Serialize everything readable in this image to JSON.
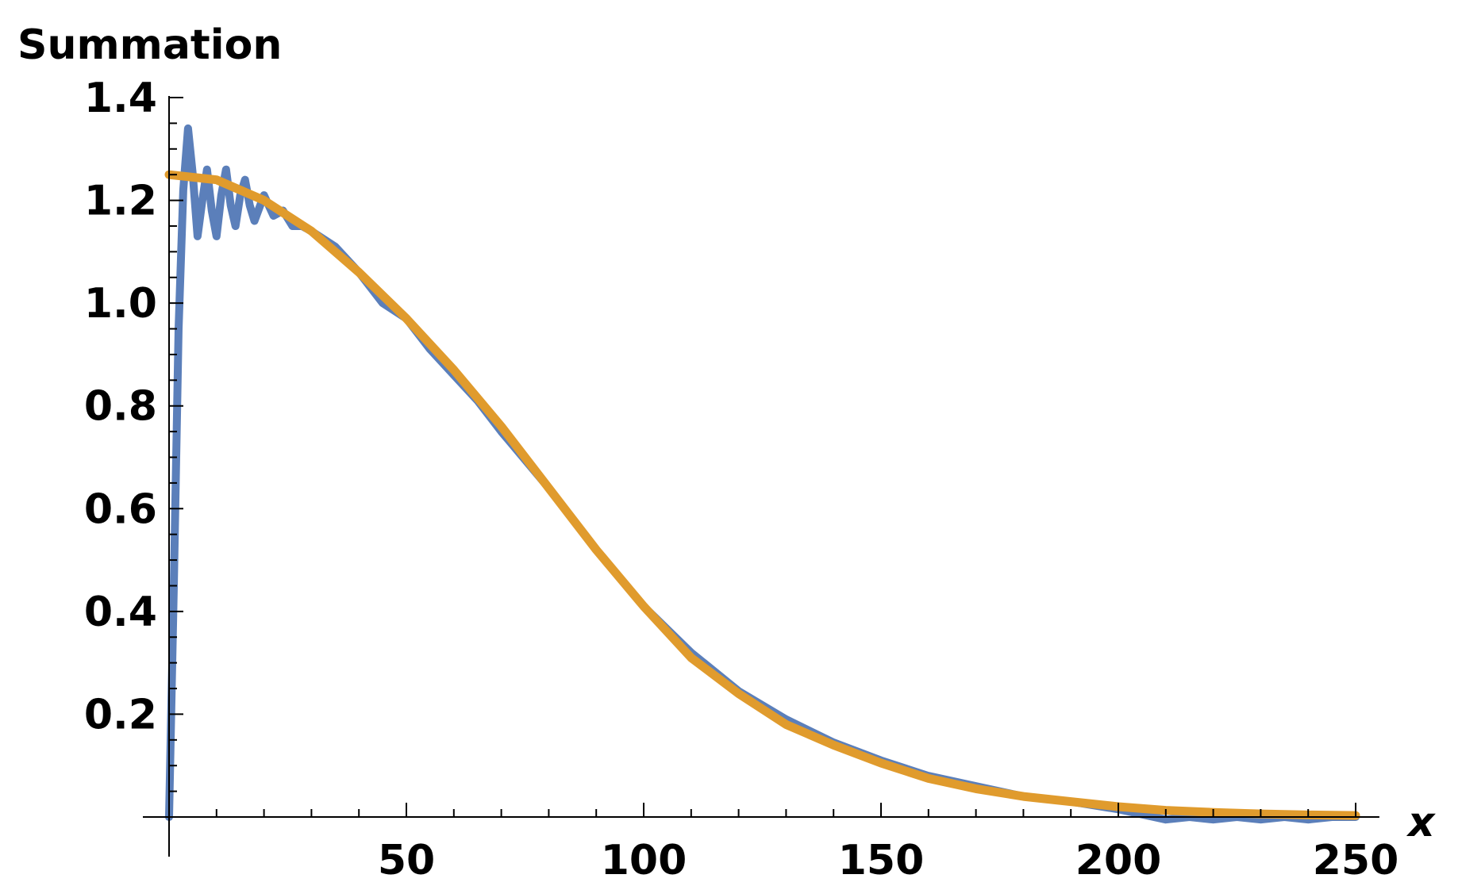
{
  "chart_data": {
    "type": "line",
    "ylabel": "Summation",
    "xlabel": "x",
    "xlim": [
      0,
      255
    ],
    "ylim": [
      0,
      1.4
    ],
    "grid": false,
    "x_ticks": [
      50,
      100,
      150,
      200,
      250
    ],
    "x_tick_labels": [
      "50",
      "100",
      "150",
      "200",
      "250"
    ],
    "y_ticks": [
      0.2,
      0.4,
      0.6,
      0.8,
      1.0,
      1.2,
      1.4
    ],
    "y_tick_labels": [
      "0.2",
      "0.4",
      "0.6",
      "0.8",
      "1.0",
      "1.2",
      "1.4"
    ],
    "series": [
      {
        "color": "#5b7fba",
        "x": [
          0,
          1,
          2,
          3,
          4,
          5,
          6,
          7,
          8,
          9,
          10,
          11,
          12,
          13,
          14,
          15,
          16,
          17,
          18,
          20,
          22,
          24,
          26,
          28,
          30,
          35,
          40,
          45,
          50,
          55,
          60,
          65,
          70,
          80,
          90,
          100,
          110,
          120,
          130,
          140,
          150,
          160,
          170,
          180,
          190,
          200,
          205,
          210,
          215,
          220,
          225,
          230,
          235,
          240,
          245,
          250
        ],
        "y": [
          0.0,
          0.45,
          0.95,
          1.22,
          1.34,
          1.25,
          1.13,
          1.2,
          1.26,
          1.18,
          1.13,
          1.21,
          1.26,
          1.19,
          1.15,
          1.21,
          1.24,
          1.19,
          1.16,
          1.21,
          1.17,
          1.18,
          1.15,
          1.15,
          1.14,
          1.11,
          1.06,
          1.0,
          0.97,
          0.91,
          0.86,
          0.81,
          0.75,
          0.64,
          0.52,
          0.41,
          0.32,
          0.245,
          0.19,
          0.145,
          0.11,
          0.08,
          0.06,
          0.04,
          0.03,
          0.015,
          0.005,
          -0.005,
          0.0,
          -0.005,
          0.0,
          -0.005,
          0.0,
          -0.005,
          0.0,
          0.0
        ]
      },
      {
        "color": "#e09b2d",
        "x": [
          0,
          10,
          20,
          30,
          40,
          50,
          60,
          70,
          80,
          90,
          100,
          110,
          120,
          130,
          140,
          150,
          160,
          170,
          180,
          190,
          200,
          210,
          220,
          230,
          240,
          250
        ],
        "y": [
          1.25,
          1.24,
          1.2,
          1.14,
          1.06,
          0.97,
          0.87,
          0.76,
          0.64,
          0.52,
          0.41,
          0.31,
          0.24,
          0.18,
          0.14,
          0.105,
          0.075,
          0.055,
          0.04,
          0.03,
          0.02,
          0.013,
          0.009,
          0.006,
          0.004,
          0.003
        ]
      }
    ]
  }
}
